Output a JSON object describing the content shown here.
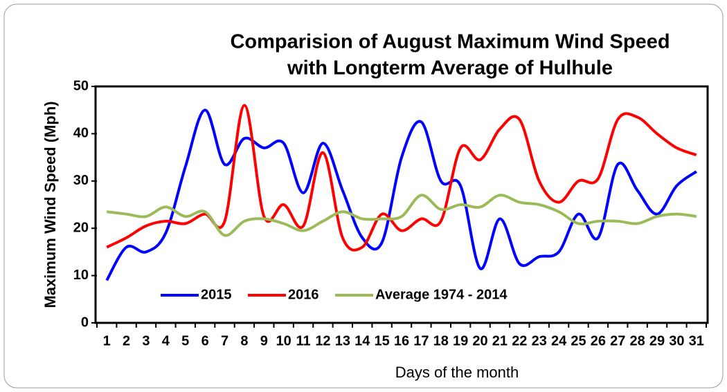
{
  "chart_data": {
    "type": "line",
    "title": "Comparision of August Maximum Wind Speed",
    "subtitle": "with Longterm Average of Hulhule",
    "x_label": "Days of the month",
    "y_label": "Maximum Wind Speed (Mph)",
    "categories": [
      "1",
      "2",
      "3",
      "4",
      "5",
      "6",
      "7",
      "8",
      "9",
      "10",
      "11",
      "12",
      "13",
      "14",
      "15",
      "16",
      "17",
      "18",
      "19",
      "20",
      "21",
      "22",
      "23",
      "24",
      "25",
      "26",
      "27",
      "28",
      "29",
      "30",
      "31"
    ],
    "series": [
      {
        "name": "2015",
        "color": "#0000ff",
        "values": [
          9,
          16,
          15,
          19,
          33,
          45,
          33.5,
          39,
          37,
          38,
          27.5,
          38,
          28,
          18,
          17,
          35,
          42.5,
          30,
          29,
          11.5,
          22,
          12.5,
          14,
          15,
          23,
          18,
          33.5,
          28,
          23,
          29,
          32
        ]
      },
      {
        "name": "2016",
        "color": "#ff0000",
        "values": [
          16,
          18,
          20.5,
          21.5,
          21,
          23,
          21.5,
          46,
          22.5,
          25,
          20.5,
          36,
          18,
          16,
          23,
          19.5,
          22,
          21.5,
          37,
          34.5,
          41,
          43,
          30,
          25.5,
          30,
          30.5,
          43,
          43.5,
          40,
          37,
          35.5
        ]
      },
      {
        "name": "Average 1974 - 2014",
        "color": "#9bbb59",
        "values": [
          23.5,
          23,
          22.5,
          24.5,
          22.5,
          23.5,
          18.5,
          21.5,
          22,
          21,
          19.5,
          21.5,
          23.5,
          22,
          22,
          22.5,
          27,
          24,
          25,
          24.5,
          27,
          25.5,
          25,
          23.5,
          21,
          21.5,
          21.5,
          21,
          22.5,
          23,
          22.5
        ]
      }
    ],
    "ylim": [
      0,
      50
    ],
    "yticks": [
      0,
      10,
      20,
      30,
      40,
      50
    ],
    "grid": false,
    "legend": "lower left"
  }
}
